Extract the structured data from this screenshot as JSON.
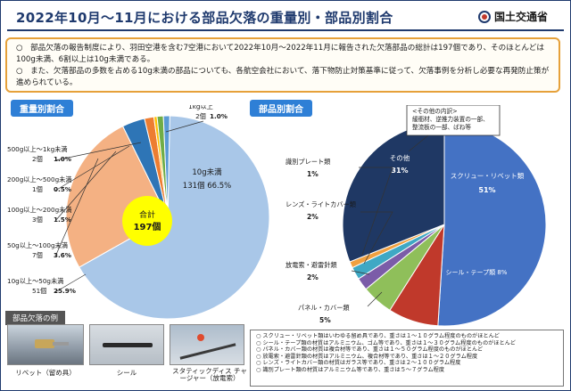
{
  "header": {
    "title": "2022年10月～11月における部品欠落の重量別・部品別割合",
    "ministry": "国土交通省"
  },
  "summary": {
    "bullet1": "○　部品欠落の報告制度により、羽田空港を含む7空港において2022年10月～2022年11月に報告された欠落部品の総計は197個であり、そのほとんどは100g未満、6割以上は10g未満である。",
    "bullet2": "○　また、欠落部品の多数を占める10g未満の部品についても、各航空会社において、落下物防止対策基準に従って、欠落事例を分析し必要な再発防止策が進められている。"
  },
  "left_section": {
    "tag": "重量別割合"
  },
  "right_section": {
    "tag": "部品別割合"
  },
  "chart_data": [
    {
      "type": "pie",
      "title": "重量別割合",
      "center_label": [
        "合計",
        "197個"
      ],
      "slices": [
        {
          "label": "10g未満",
          "count": "131個",
          "pct": 66.5,
          "color": "#a9c7e8"
        },
        {
          "label": "10g以上～50g未満",
          "count": "51個",
          "pct": 25.9,
          "color": "#f4b183"
        },
        {
          "label": "50g以上～100g未満",
          "count": "7個",
          "pct": 3.6,
          "color": "#2e75b6"
        },
        {
          "label": "100g以上～200g未満",
          "count": "3個",
          "pct": 1.5,
          "color": "#ed7d31"
        },
        {
          "label": "200g以上～500g未満",
          "count": "1個",
          "pct": 0.5,
          "color": "#ffc000"
        },
        {
          "label": "500g以上～1kg未満",
          "count": "2個",
          "pct": 1.0,
          "color": "#70ad47"
        },
        {
          "label": "1kg以上",
          "count": "2個",
          "pct": 1.0,
          "color": "#5b9bd5"
        }
      ]
    },
    {
      "type": "pie",
      "title": "部品別割合",
      "slices": [
        {
          "label": "スクリュー・リベット類",
          "pct": 51,
          "color": "#4472c4"
        },
        {
          "label": "シール・テープ類",
          "pct": 8,
          "color": "#c0392b"
        },
        {
          "label": "パネル・カバー類",
          "pct": 5,
          "color": "#8fbf5a"
        },
        {
          "label": "放電索・避雷針類",
          "pct": 2,
          "color": "#7b5ca8"
        },
        {
          "label": "レンズ・ライトカバー類",
          "pct": 2,
          "color": "#3fa8c4"
        },
        {
          "label": "識別プレート類",
          "pct": 1,
          "color": "#f0a040"
        },
        {
          "label": "その他",
          "pct": 31,
          "color": "#1f3864"
        }
      ],
      "other_note": [
        "<その他の内訳>",
        "緩衝材、逆推力装置の一部、",
        "整流板の一部、ばね等"
      ]
    }
  ],
  "photos": {
    "section_label": "部品欠落の例",
    "items": [
      {
        "caption": "リベット（留め具）"
      },
      {
        "caption": "シール"
      },
      {
        "caption": "スタティックディス チャージャー（放電索）"
      }
    ]
  },
  "notes": [
    "スクリュー・リベット類はいわゆる留め具であり、重さは１～１０グラム程度のものがほとんど",
    "シール・テープ類の材質はアルミニウム、ゴム等であり、重さは１～３０グラム程度のものがほとんど",
    "パネル・カバー類の材質は複合材等であり、重さは１～５０グラム程度のものがほとんど",
    "放電索・避雷針類の材質はアルミニウム、複合材等であり、重さは１～２０グラム程度",
    "レンズ・ライトカバー類の材質はガラス等であり、重さは２～１００グラム程度",
    "識別プレート類の材質はアルミニウム等であり、重さは５～７グラム程度"
  ]
}
